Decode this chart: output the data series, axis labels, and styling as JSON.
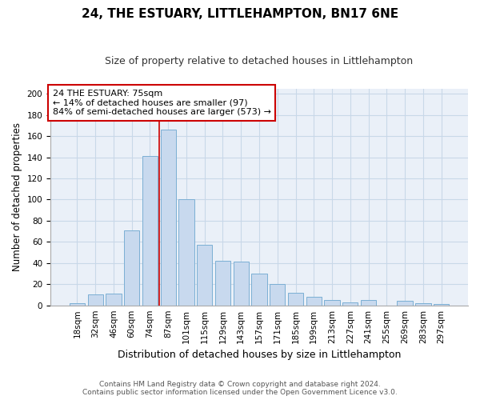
{
  "title": "24, THE ESTUARY, LITTLEHAMPTON, BN17 6NE",
  "subtitle": "Size of property relative to detached houses in Littlehampton",
  "xlabel": "Distribution of detached houses by size in Littlehampton",
  "ylabel": "Number of detached properties",
  "footer_line1": "Contains HM Land Registry data © Crown copyright and database right 2024.",
  "footer_line2": "Contains public sector information licensed under the Open Government Licence v3.0.",
  "categories": [
    "18sqm",
    "32sqm",
    "46sqm",
    "60sqm",
    "74sqm",
    "87sqm",
    "101sqm",
    "115sqm",
    "129sqm",
    "143sqm",
    "157sqm",
    "171sqm",
    "185sqm",
    "199sqm",
    "213sqm",
    "227sqm",
    "241sqm",
    "255sqm",
    "269sqm",
    "283sqm",
    "297sqm"
  ],
  "values": [
    2,
    10,
    11,
    71,
    141,
    166,
    100,
    57,
    42,
    41,
    30,
    20,
    12,
    8,
    5,
    3,
    5,
    0,
    4,
    2,
    1
  ],
  "bar_color": "#c8d9ee",
  "bar_edge_color": "#7bafd4",
  "vline_x": 4.5,
  "vline_color": "#cc0000",
  "annotation_line1": "24 THE ESTUARY: 75sqm",
  "annotation_line2": "← 14% of detached houses are smaller (97)",
  "annotation_line3": "84% of semi-detached houses are larger (573) →",
  "annotation_box_color": "#cc0000",
  "ylim": [
    0,
    205
  ],
  "yticks": [
    0,
    20,
    40,
    60,
    80,
    100,
    120,
    140,
    160,
    180,
    200
  ],
  "title_fontsize": 11,
  "subtitle_fontsize": 9,
  "xlabel_fontsize": 9,
  "ylabel_fontsize": 8.5,
  "tick_fontsize": 7.5,
  "annot_fontsize": 8,
  "footer_fontsize": 6.5,
  "background_color": "#ffffff",
  "grid_color": "#c8d8e8",
  "plot_bg_color": "#eaf0f8"
}
